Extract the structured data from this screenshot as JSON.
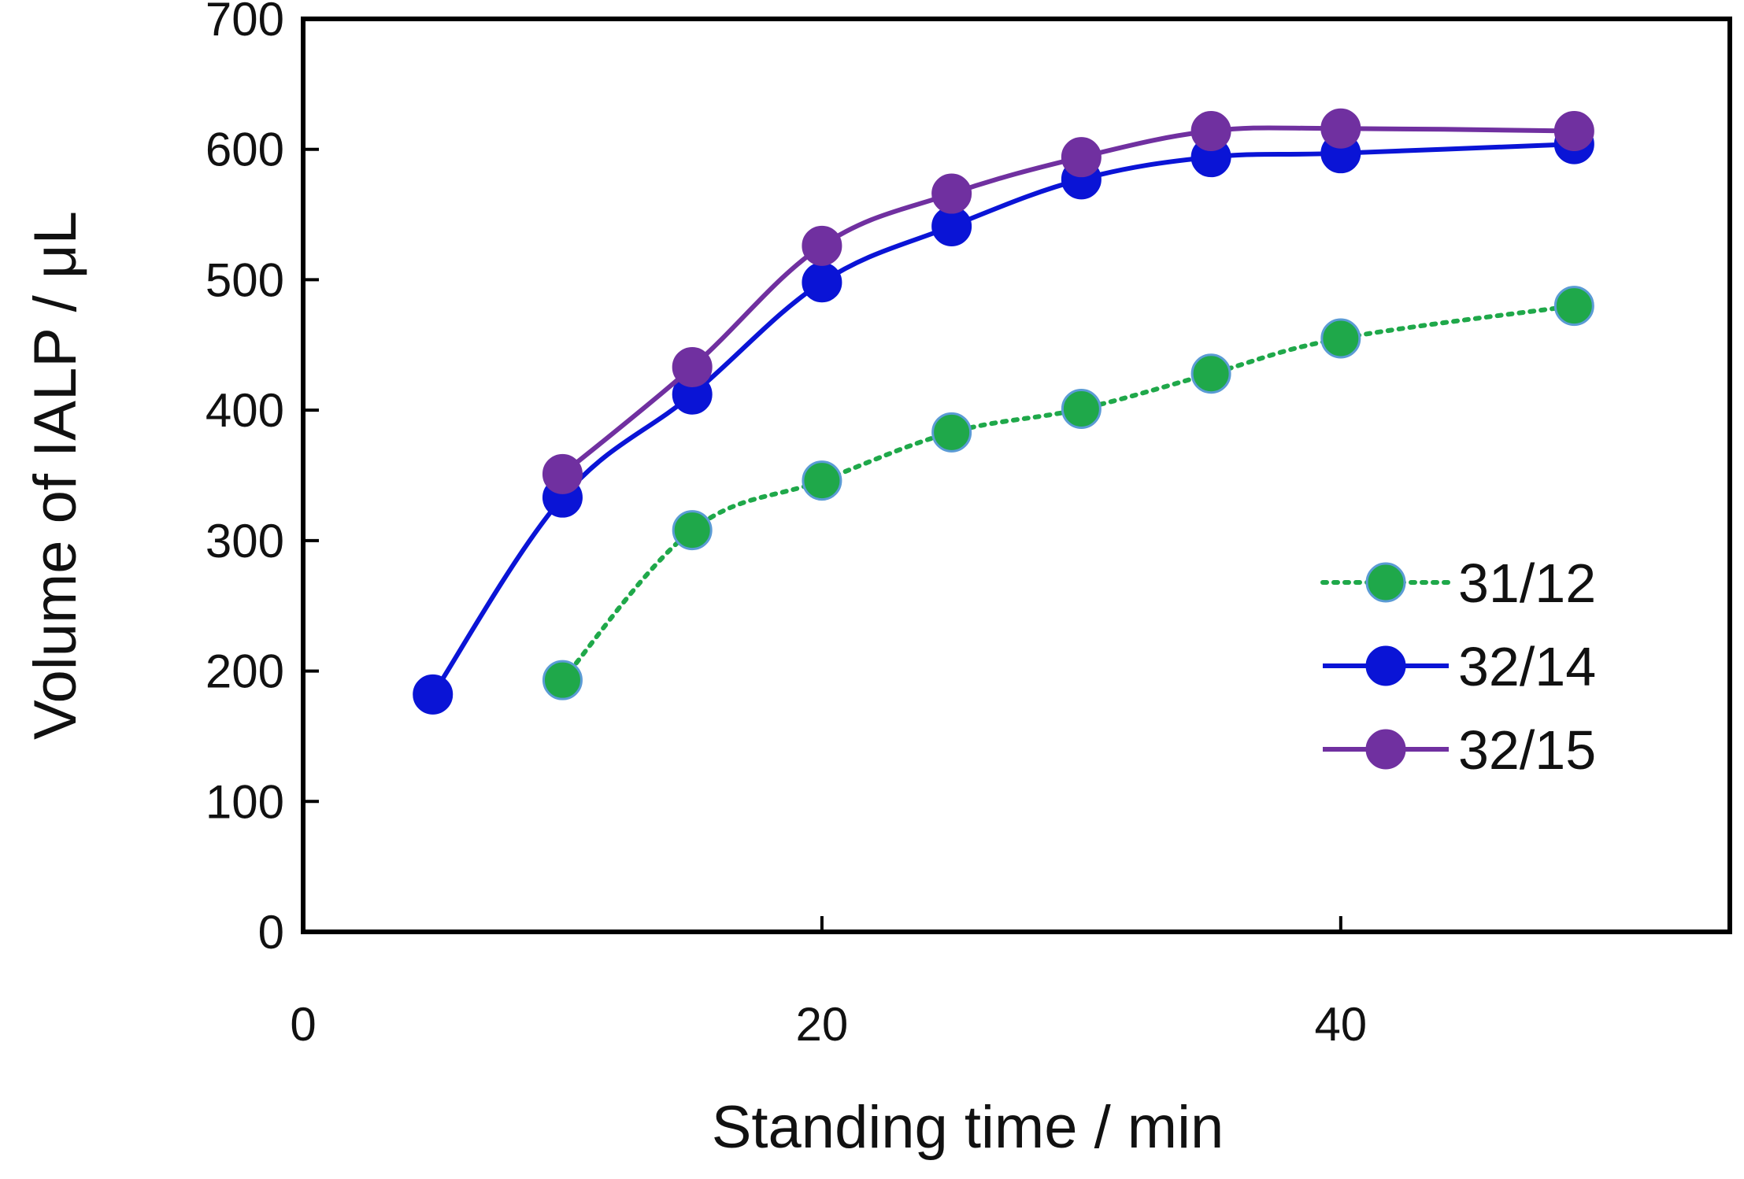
{
  "chart_data": {
    "type": "line",
    "title": "",
    "xlabel": "Standing time / min",
    "ylabel": "Volume of IALP / μL",
    "xlim": [
      0,
      55
    ],
    "ylim": [
      0,
      700
    ],
    "xticks": [
      0,
      20,
      40
    ],
    "yticks": [
      0,
      100,
      200,
      300,
      400,
      500,
      600,
      700
    ],
    "grid": false,
    "legend_position": "right",
    "series": [
      {
        "name": "31/12",
        "style": "dotted",
        "color": "#1fa84a",
        "marker_edge": "#5b9bd5",
        "x": [
          10,
          15,
          20,
          25,
          30,
          35,
          40,
          49
        ],
        "y": [
          193,
          308,
          346,
          383,
          401,
          428,
          455,
          480
        ]
      },
      {
        "name": "32/14",
        "style": "solid",
        "color": "#0a14d6",
        "marker_edge": "#0a14d6",
        "x": [
          5,
          10,
          15,
          20,
          25,
          30,
          35,
          40,
          49
        ],
        "y": [
          182,
          333,
          412,
          498,
          541,
          577,
          594,
          597,
          604
        ]
      },
      {
        "name": "32/15",
        "style": "solid",
        "color": "#7030a0",
        "marker_edge": "#7030a0",
        "x": [
          10,
          15,
          20,
          25,
          30,
          35,
          40,
          49
        ],
        "y": [
          351,
          433,
          526,
          566,
          594,
          614,
          616,
          614
        ]
      }
    ]
  }
}
